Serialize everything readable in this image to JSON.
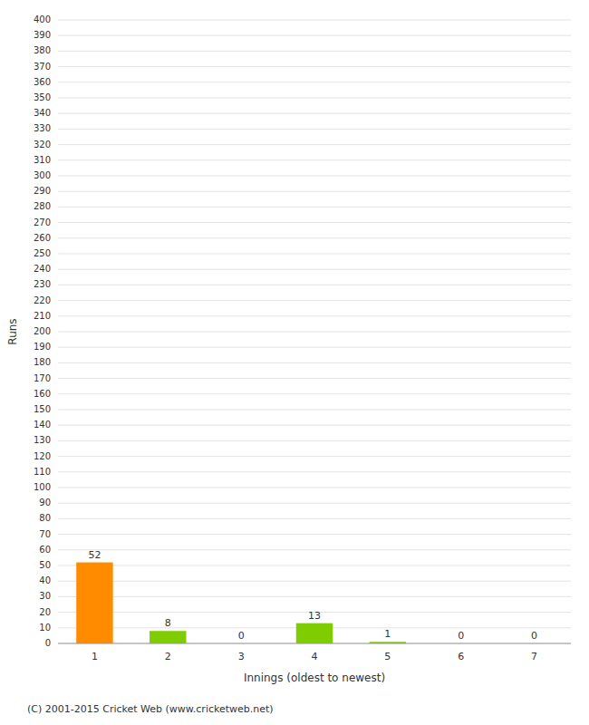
{
  "chart_data": {
    "type": "bar",
    "categories": [
      "1",
      "2",
      "3",
      "4",
      "5",
      "6",
      "7"
    ],
    "values": [
      52,
      8,
      0,
      13,
      1,
      0,
      0
    ],
    "colors": [
      "#FF8C00",
      "#7FCC00",
      "#7FCC00",
      "#7FCC00",
      "#7FCC00",
      "#7FCC00",
      "#7FCC00"
    ],
    "xlabel": "Innings (oldest to newest)",
    "ylabel": "Runs",
    "ylim": [
      0,
      400
    ],
    "yticks": [
      0,
      10,
      20,
      30,
      40,
      50,
      60,
      70,
      80,
      90,
      100,
      110,
      120,
      130,
      140,
      150,
      160,
      170,
      180,
      190,
      200,
      210,
      220,
      230,
      240,
      250,
      260,
      270,
      280,
      290,
      300,
      310,
      320,
      330,
      340,
      350,
      360,
      370,
      380,
      390,
      400
    ],
    "grid": true,
    "data_labels": true,
    "annotations": [
      "(C) 2001-2015 Cricket Web (www.cricketweb.net)"
    ]
  }
}
